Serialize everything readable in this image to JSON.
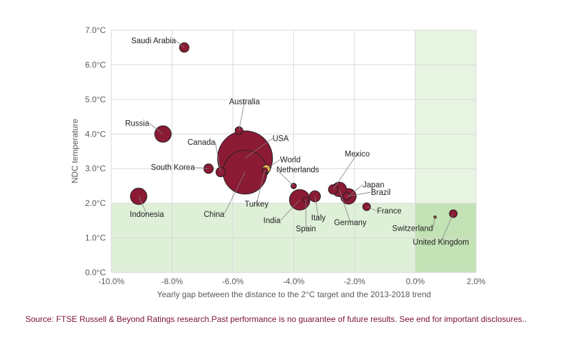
{
  "chart_data": {
    "type": "scatter",
    "subtype": "bubble",
    "xlabel": "Yearly gap between the distance to the 2°C target and the 2013-2018 trend",
    "ylabel": "NDC temperature",
    "xlim": [
      -10.0,
      2.0
    ],
    "ylim": [
      0.0,
      7.0
    ],
    "x_ticks": [
      "-10.0%",
      "-8.0%",
      "-6.0%",
      "-4.0%",
      "-2.0%",
      "0.0%",
      "2.0%"
    ],
    "y_ticks": [
      "0.0°C",
      "1.0°C",
      "2.0°C",
      "3.0°C",
      "4.0°C",
      "5.0°C",
      "6.0°C",
      "7.0°C"
    ],
    "grid": true,
    "colors": {
      "bubble": "#8b1a35",
      "highlight": "#f9b14b",
      "small": "#6b3a2a",
      "shade": "#dff0d8",
      "shade_dark": "#c3e2b5",
      "grid": "#d9d9d9"
    },
    "shaded_regions": [
      {
        "x": [
          -10.0,
          2.0
        ],
        "y": [
          0.0,
          2.0
        ]
      },
      {
        "x": [
          0.0,
          2.0
        ],
        "y": [
          0.0,
          7.0
        ]
      }
    ],
    "points": [
      {
        "name": "Saudi Arabia",
        "x": -7.6,
        "y": 6.5,
        "size": 3
      },
      {
        "name": "Russia",
        "x": -8.3,
        "y": 4.0,
        "size": 9
      },
      {
        "name": "Australia",
        "x": -5.8,
        "y": 4.1,
        "size": 2
      },
      {
        "name": "Canada",
        "x": -6.4,
        "y": 2.9,
        "size": 3
      },
      {
        "name": "USA",
        "x": -5.6,
        "y": 3.3,
        "size": 100
      },
      {
        "name": "World",
        "x": -4.9,
        "y": 3.0,
        "size": 2
      },
      {
        "name": "South Korea",
        "x": -6.8,
        "y": 3.0,
        "size": 3
      },
      {
        "name": "China",
        "x": -5.6,
        "y": 2.9,
        "size": 64
      },
      {
        "name": "Turkey",
        "x": -4.95,
        "y": 2.95,
        "size": 1
      },
      {
        "name": "Indonesia",
        "x": -9.1,
        "y": 2.2,
        "size": 9
      },
      {
        "name": "Netherlands",
        "x": -4.0,
        "y": 2.5,
        "size": 1
      },
      {
        "name": "India",
        "x": -3.8,
        "y": 2.1,
        "size": 14
      },
      {
        "name": "Spain",
        "x": -3.6,
        "y": 2.1,
        "size": 1
      },
      {
        "name": "Italy",
        "x": -3.3,
        "y": 2.2,
        "size": 4
      },
      {
        "name": "Mexico",
        "x": -2.7,
        "y": 2.4,
        "size": 3
      },
      {
        "name": "Germany",
        "x": -2.5,
        "y": 2.4,
        "size": 7
      },
      {
        "name": "Japan",
        "x": -2.2,
        "y": 2.2,
        "size": 8
      },
      {
        "name": "Brazil",
        "x": -2.25,
        "y": 2.2,
        "size": 2
      },
      {
        "name": "France",
        "x": -1.6,
        "y": 1.9,
        "size": 2
      },
      {
        "name": "Switzerland",
        "x": 0.65,
        "y": 1.6,
        "size": 0.1
      },
      {
        "name": "United Kingdom",
        "x": 1.25,
        "y": 1.7,
        "size": 2
      }
    ]
  },
  "source_note": "Source: FTSE Russell & Beyond Ratings research.Past performance is no guarantee of future results.  See end for important disclosures.."
}
